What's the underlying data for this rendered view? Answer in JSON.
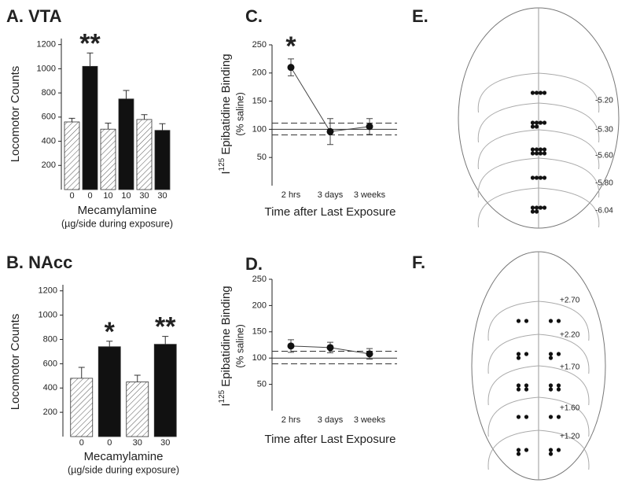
{
  "chart_data": [
    {
      "type": "bar",
      "title": "A. VTA",
      "y_label": "Locomotor Counts",
      "x_label": "Mecamylamine",
      "x_sublabel": "(µg/side during exposure)",
      "categories": [
        "0",
        "0",
        "10",
        "10",
        "30",
        "30"
      ],
      "values": [
        560,
        1020,
        500,
        750,
        580,
        490
      ],
      "errors": [
        30,
        110,
        50,
        70,
        40,
        55
      ],
      "fills": [
        "hatch",
        "solid",
        "hatch",
        "solid",
        "hatch",
        "solid"
      ],
      "annotations": [
        null,
        "**",
        null,
        null,
        null,
        null
      ],
      "ylim": [
        0,
        1250
      ],
      "yticks": [
        200,
        400,
        600,
        800,
        1000,
        1200
      ],
      "color": "#111111"
    },
    {
      "type": "bar",
      "title": "B. NAcc",
      "y_label": "Locomotor Counts",
      "x_label": "Mecamylamine",
      "x_sublabel": "(µg/side during exposure)",
      "categories": [
        "0",
        "0",
        "30",
        "30"
      ],
      "values": [
        480,
        740,
        450,
        760
      ],
      "errors": [
        90,
        45,
        55,
        65
      ],
      "fills": [
        "hatch",
        "solid",
        "hatch",
        "solid"
      ],
      "annotations": [
        null,
        "*",
        null,
        "**"
      ],
      "ylim": [
        0,
        1250
      ],
      "yticks": [
        200,
        400,
        600,
        800,
        1000,
        1200
      ],
      "color": "#111111"
    },
    {
      "type": "line",
      "title": "C.",
      "y_label": {
        "symbol": "I",
        "superscript": "125",
        "text": "Epibatidine Binding"
      },
      "y_sublabel": "(% saline)",
      "x_label": "Time after Last Exposure",
      "categories": [
        "2 hrs",
        "3 days",
        "3 weeks"
      ],
      "values": [
        210,
        96,
        105
      ],
      "errors": [
        15,
        23,
        14
      ],
      "annotations": [
        "*",
        null,
        null
      ],
      "reference_lines": [
        {
          "value": 100,
          "style": "solid"
        },
        {
          "value": 111,
          "style": "dashed"
        },
        {
          "value": 90,
          "style": "dashed"
        }
      ],
      "ylim": [
        0,
        250
      ],
      "yticks": [
        50,
        100,
        150,
        200,
        250
      ],
      "color": "#111111"
    },
    {
      "type": "line",
      "title": "D.",
      "y_label": {
        "symbol": "I",
        "superscript": "125",
        "text": "Epibatidine Binding"
      },
      "y_sublabel": "(% saline)",
      "x_label": "Time after Last Exposure",
      "categories": [
        "2 hrs",
        "3 days",
        "3 weeks"
      ],
      "values": [
        123,
        120,
        108
      ],
      "errors": [
        12,
        10,
        10
      ],
      "annotations": [
        null,
        null,
        null
      ],
      "reference_lines": [
        {
          "value": 100,
          "style": "solid"
        },
        {
          "value": 113,
          "style": "dashed"
        },
        {
          "value": 89,
          "style": "dashed"
        }
      ],
      "ylim": [
        0,
        250
      ],
      "yticks": [
        50,
        100,
        150,
        200,
        250
      ],
      "color": "#111111"
    },
    {
      "type": "atlas",
      "title": "E.",
      "labels": [
        "-5.20",
        "-5.30",
        "-5.60",
        "-5.80",
        "-6.04"
      ]
    },
    {
      "type": "atlas",
      "title": "F.",
      "labels": [
        "+2.70",
        "+2.20",
        "+1.70",
        "+1.60",
        "+1.20"
      ]
    }
  ]
}
